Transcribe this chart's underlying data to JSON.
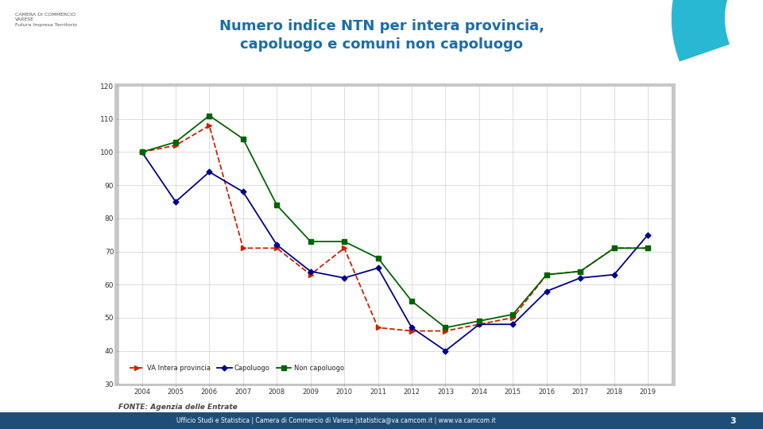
{
  "title_line1": "Numero indice NTN per intera provincia,",
  "title_line2": "capoluogo e comuni non capoluogo",
  "years": [
    2004,
    2005,
    2006,
    2007,
    2008,
    2009,
    2010,
    2011,
    2012,
    2013,
    2014,
    2015,
    2016,
    2017,
    2018,
    2019
  ],
  "va_intera_provincia": [
    100,
    102,
    108,
    71,
    71,
    63,
    71,
    47,
    46,
    46,
    48,
    50,
    63,
    64,
    71,
    71
  ],
  "capoluogo": [
    100,
    85,
    94,
    88,
    72,
    64,
    62,
    65,
    47,
    40,
    48,
    48,
    58,
    62,
    63,
    75
  ],
  "non_capoluogo": [
    100,
    103,
    111,
    104,
    84,
    73,
    73,
    68,
    55,
    47,
    49,
    51,
    63,
    64,
    71,
    71
  ],
  "color_va": "#cc2200",
  "color_cap": "#00008b",
  "color_non_cap": "#006400",
  "ylim_min": 30,
  "ylim_max": 120,
  "yticks": [
    30,
    40,
    50,
    60,
    70,
    80,
    90,
    100,
    110,
    120
  ],
  "legend_labels": [
    "VA Intera provincia",
    "Capoluogo",
    "Non capoluogo"
  ],
  "source_text": "FONTE: Agenzia delle Entrate",
  "footer_text": "Ufficio Studi e Statistica | Camera di Commercio di Varese |statistica@va.camcom.it | www.va.camcom.it",
  "page_num": "3",
  "title_color": "#1a6ea8",
  "footer_bg": "#1e4d78",
  "bg_color": "#ffffff",
  "chart_bg": "#ffffff",
  "chart_border_color": "#c8c8c8",
  "grid_color": "#d0d0d0"
}
